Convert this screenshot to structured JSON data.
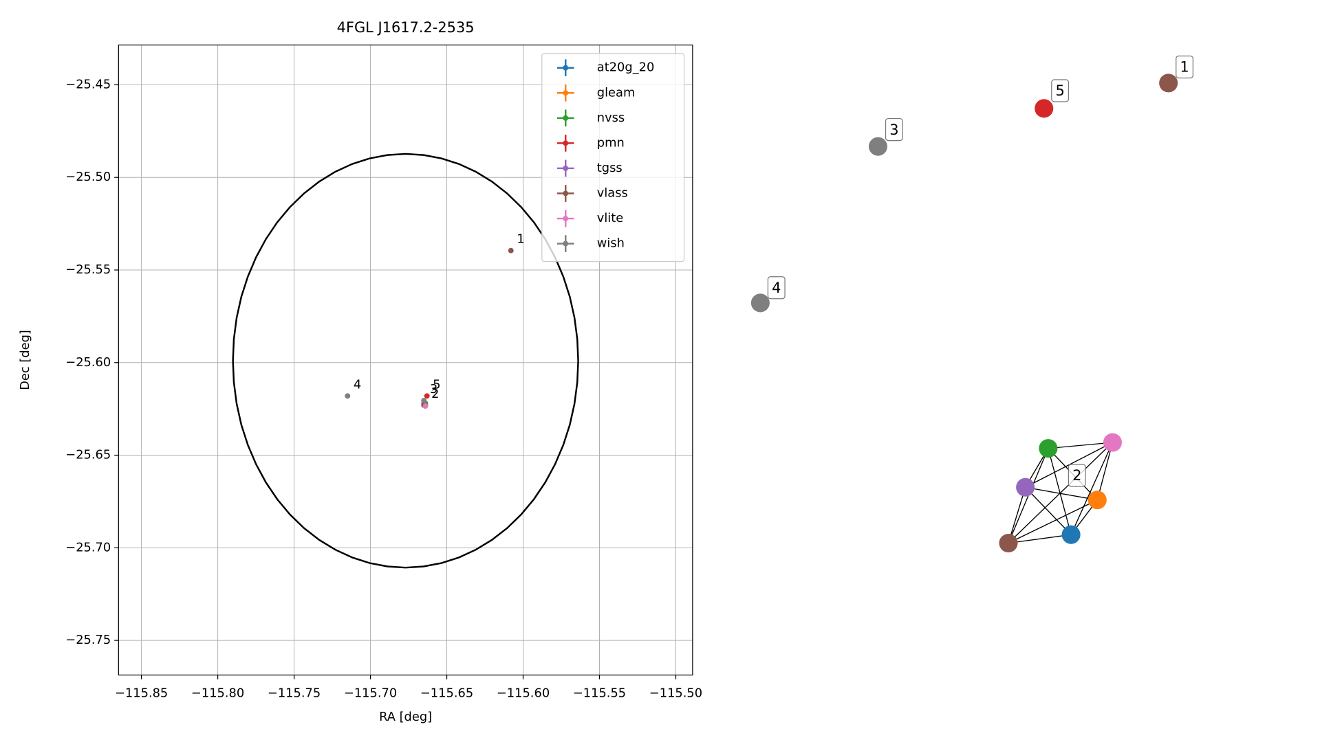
{
  "chart_data": [
    {
      "type": "scatter",
      "title": "4FGL J1617.2-2535",
      "x_label": "RA [deg]",
      "y_label": "Dec [deg]",
      "xlim": [
        -115.865,
        -115.489
      ],
      "ylim": [
        -25.7687,
        -25.4285
      ],
      "grid": true,
      "legend": "upper right",
      "xticks": [
        {
          "value": -115.85,
          "label": "−115.85"
        },
        {
          "value": -115.8,
          "label": "−115.80"
        },
        {
          "value": -115.75,
          "label": "−115.75"
        },
        {
          "value": -115.7,
          "label": "−115.70"
        },
        {
          "value": -115.65,
          "label": "−115.65"
        },
        {
          "value": -115.6,
          "label": "−115.60"
        },
        {
          "value": -115.55,
          "label": "−115.55"
        },
        {
          "value": -115.5,
          "label": "−115.50"
        }
      ],
      "yticks": [
        {
          "value": -25.45,
          "label": "−25.45"
        },
        {
          "value": -25.5,
          "label": "−25.50"
        },
        {
          "value": -25.55,
          "label": "−25.55"
        },
        {
          "value": -25.6,
          "label": "−25.60"
        },
        {
          "value": -25.65,
          "label": "−25.65"
        },
        {
          "value": -25.7,
          "label": "−25.70"
        },
        {
          "value": -25.75,
          "label": "−25.75"
        }
      ],
      "series": [
        {
          "name": "at20g_20",
          "color": "#1f77b4",
          "x": [
            -115.664
          ],
          "y": [
            -25.623
          ]
        },
        {
          "name": "gleam",
          "color": "#ff7f0e",
          "x": [
            -115.664
          ],
          "y": [
            -25.623
          ]
        },
        {
          "name": "nvss",
          "color": "#2ca02c",
          "x": [
            -115.664
          ],
          "y": [
            -25.622
          ]
        },
        {
          "name": "pmn",
          "color": "#d62728",
          "x": [
            -115.663
          ],
          "y": [
            -25.618
          ]
        },
        {
          "name": "tgss",
          "color": "#9467bd",
          "x": [
            -115.665
          ],
          "y": [
            -25.622
          ]
        },
        {
          "name": "vlass",
          "color": "#8c564b",
          "x": [
            -115.608,
            -115.665
          ],
          "y": [
            -25.5395,
            -25.623
          ]
        },
        {
          "name": "vlite",
          "color": "#e377c2",
          "x": [
            -115.664
          ],
          "y": [
            -25.6235
          ]
        },
        {
          "name": "wish",
          "color": "#7f7f7f",
          "x": [
            -115.715,
            -115.665
          ],
          "y": [
            -25.618,
            -25.6205
          ]
        }
      ],
      "annotations": [
        {
          "text": "1",
          "x": -115.608,
          "y": -25.5395
        },
        {
          "text": "2",
          "x": -115.664,
          "y": -25.623
        },
        {
          "text": "3",
          "x": -115.665,
          "y": -25.6205
        },
        {
          "text": "4",
          "x": -115.715,
          "y": -25.618
        },
        {
          "text": "5",
          "x": -115.663,
          "y": -25.618
        }
      ],
      "ellipse": {
        "x": -115.677,
        "y": -25.599,
        "rx": 0.1131,
        "ry": 0.1117,
        "color": "#000000"
      }
    },
    {
      "type": "network",
      "groups": [
        {
          "label": "1",
          "colors": [
            "#8c564b"
          ]
        },
        {
          "label": "2",
          "colors": [
            "#2ca02c",
            "#e377c2",
            "#9467bd",
            "#ff7f0e",
            "#1f77b4",
            "#8c564b"
          ]
        },
        {
          "label": "3",
          "colors": [
            "#7f7f7f"
          ]
        },
        {
          "label": "4",
          "colors": [
            "#7f7f7f"
          ]
        },
        {
          "label": "5",
          "colors": [
            "#d62728"
          ]
        }
      ]
    }
  ]
}
